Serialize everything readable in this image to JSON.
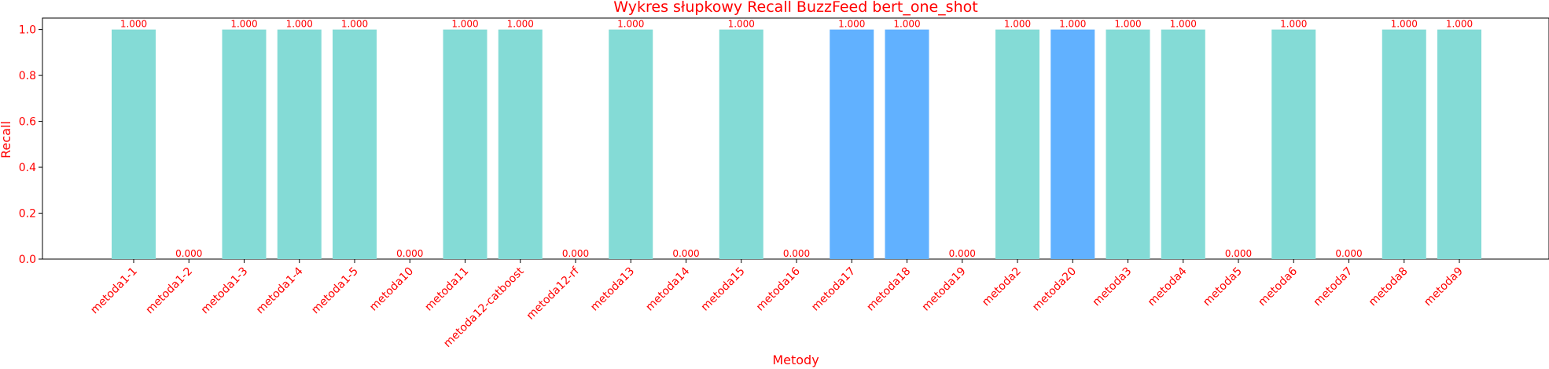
{
  "chart_data": {
    "type": "bar",
    "title": "Wykres słupkowy Recall BuzzFeed bert_one_shot",
    "xlabel": "Metody",
    "ylabel": "Recall",
    "ylim": [
      0,
      1.05
    ],
    "yticks": [
      "0.0",
      "0.2",
      "0.4",
      "0.6",
      "0.8",
      "1.0"
    ],
    "grid": false,
    "text_color": "#ff0000",
    "categories": [
      "metoda1-1",
      "metoda1-2",
      "metoda1-3",
      "metoda1-4",
      "metoda1-5",
      "metoda10",
      "metoda11",
      "metoda12-catboost",
      "metoda12-rf",
      "metoda13",
      "metoda14",
      "metoda15",
      "metoda16",
      "metoda17",
      "metoda18",
      "metoda19",
      "metoda2",
      "metoda20",
      "metoda3",
      "metoda4",
      "metoda5",
      "metoda6",
      "metoda7",
      "metoda8",
      "metoda9"
    ],
    "values": [
      1,
      0,
      1,
      1,
      1,
      0,
      1,
      1,
      0,
      1,
      0,
      1,
      0,
      1,
      1,
      0,
      1,
      1,
      1,
      1,
      0,
      1,
      0,
      1,
      1
    ],
    "data_labels": [
      "1.000",
      "0.000",
      "1.000",
      "1.000",
      "1.000",
      "0.000",
      "1.000",
      "1.000",
      "0.000",
      "1.000",
      "0.000",
      "1.000",
      "0.000",
      "1.000",
      "1.000",
      "0.000",
      "1.000",
      "1.000",
      "1.000",
      "1.000",
      "0.000",
      "1.000",
      "0.000",
      "1.000",
      "1.000"
    ],
    "bar_colors": [
      "#84dbd6",
      "#84dbd6",
      "#84dbd6",
      "#84dbd6",
      "#84dbd6",
      "#84dbd6",
      "#84dbd6",
      "#84dbd6",
      "#84dbd6",
      "#84dbd6",
      "#84dbd6",
      "#84dbd6",
      "#84dbd6",
      "#61b1ff",
      "#61b1ff",
      "#84dbd6",
      "#84dbd6",
      "#61b1ff",
      "#84dbd6",
      "#84dbd6",
      "#84dbd6",
      "#84dbd6",
      "#84dbd6",
      "#84dbd6",
      "#84dbd6"
    ]
  }
}
